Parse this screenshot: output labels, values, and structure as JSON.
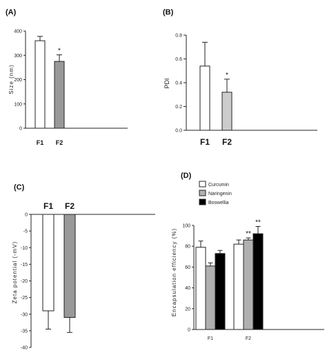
{
  "chart_data": [
    {
      "panel": "(A)",
      "type": "bar",
      "categories": [
        "F1",
        "F2"
      ],
      "values": [
        360,
        275
      ],
      "errors": [
        18,
        27
      ],
      "significance": [
        "",
        "*"
      ],
      "colors": [
        "#ffffff",
        "#999999"
      ],
      "ylabel": "Size (nm)",
      "ylim": [
        0,
        400
      ],
      "yticks": [
        "0",
        "100",
        "200",
        "300",
        "400"
      ]
    },
    {
      "panel": "(B)",
      "type": "bar",
      "categories": [
        "F1",
        "F2"
      ],
      "values": [
        0.54,
        0.32
      ],
      "errors": [
        0.2,
        0.11
      ],
      "significance": [
        "",
        "*"
      ],
      "colors": [
        "#ffffff",
        "#cccccc"
      ],
      "ylabel": "PDI",
      "ylim": [
        0,
        0.8
      ],
      "yticks": [
        "0.0",
        "0.2",
        "0.4",
        "0.6",
        "0.8"
      ]
    },
    {
      "panel": "(C)",
      "type": "bar",
      "categories": [
        "F1",
        "F2"
      ],
      "values": [
        -29,
        -31
      ],
      "errors": [
        5.5,
        4.5
      ],
      "colors": [
        "#ffffff",
        "#999999"
      ],
      "ylabel": "Zeta potential (-mV)",
      "ylim": [
        -40,
        0
      ],
      "yticks": [
        "0",
        "-5",
        "-10",
        "-15",
        "-20",
        "-25",
        "-30",
        "-35",
        "-40"
      ]
    },
    {
      "panel": "(D)",
      "type": "bar",
      "categories": [
        "F1",
        "F2"
      ],
      "series": [
        {
          "name": "Curcumin",
          "values": [
            79,
            82
          ],
          "errors": [
            6,
            4
          ],
          "color": "#ffffff"
        },
        {
          "name": "Naringenin",
          "values": [
            61,
            86
          ],
          "errors": [
            3,
            2
          ],
          "color": "#b0b0b0"
        },
        {
          "name": "Boswellia",
          "values": [
            73,
            92
          ],
          "errors": [
            3,
            7
          ],
          "color": "#000000"
        }
      ],
      "significance": [
        [
          "",
          "",
          ""
        ],
        [
          "",
          "**",
          "**"
        ]
      ],
      "ylabel": "Encapsulation efficiency (%)",
      "ylim": [
        0,
        100
      ],
      "yticks": [
        "0",
        "20",
        "40",
        "60",
        "80",
        "100"
      ],
      "legend": "top-left"
    }
  ]
}
